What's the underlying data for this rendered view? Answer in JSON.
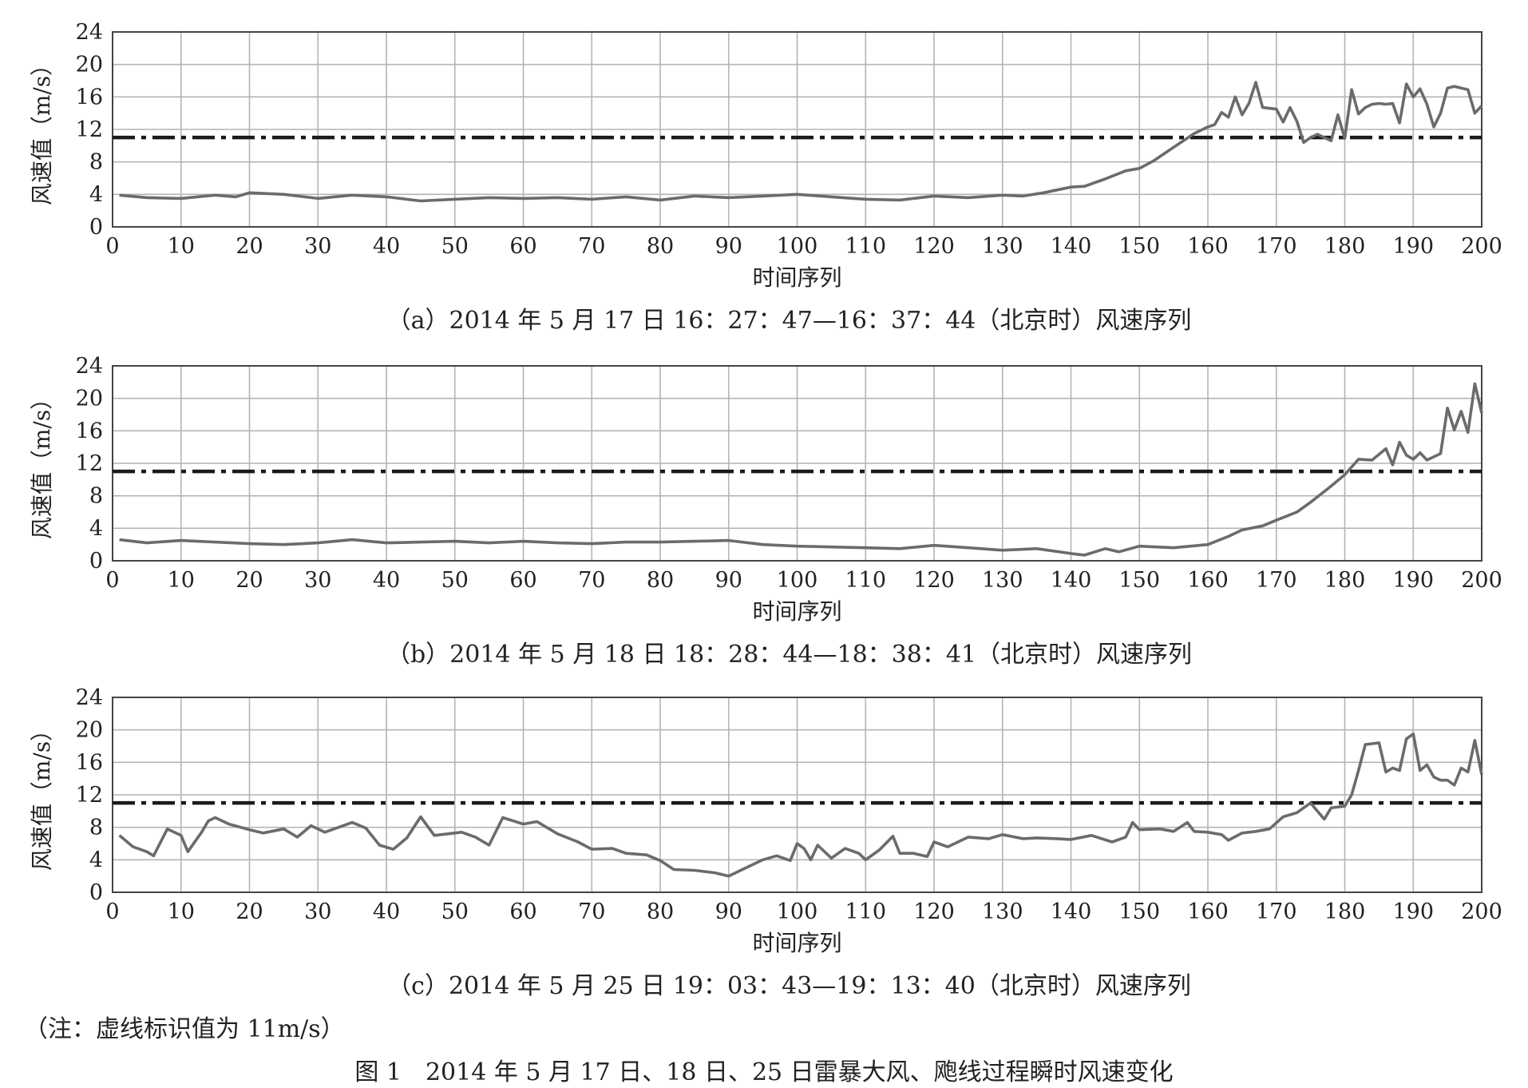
{
  "figure_caption": "图 1　2014 年 5 月 17 日、18 日、25 日雷暴大风、飑线过程瞬时风速变化",
  "note": "（注：虚线标识值为 11m/s）",
  "colors": {
    "series": "#6b6b6b",
    "threshold": "#1a1a1a",
    "grid": "#b4b4b4"
  },
  "chart_data": [
    {
      "type": "line",
      "caption": "（a）2014 年 5 月 17 日 16：27：47—16：37：44（北京时）风速序列",
      "xlabel": "时间序列",
      "ylabel": "风速值（m/s）",
      "xlim": [
        0,
        200
      ],
      "ylim": [
        0,
        24
      ],
      "xticks": [
        "0",
        "10",
        "20",
        "30",
        "40",
        "50",
        "60",
        "70",
        "80",
        "90",
        "100",
        "110",
        "120",
        "130",
        "140",
        "150",
        "160",
        "170",
        "180",
        "190",
        "200"
      ],
      "yticks": [
        "0",
        "4",
        "8",
        "12",
        "16",
        "20",
        "24"
      ],
      "grid": true,
      "threshold": 11,
      "series": [
        {
          "x": [
            1,
            5,
            10,
            15,
            18,
            20,
            25,
            30,
            35,
            40,
            45,
            50,
            55,
            60,
            65,
            70,
            75,
            80,
            85,
            90,
            95,
            100,
            105,
            110,
            115,
            120,
            125,
            130,
            133,
            136,
            140,
            142,
            145,
            148,
            150,
            152,
            155,
            158,
            160,
            161,
            162,
            163,
            164,
            165,
            166,
            167,
            168,
            170,
            171,
            172,
            173,
            174,
            175,
            176,
            178,
            179,
            180,
            181,
            182,
            183,
            184,
            185,
            186,
            187,
            188,
            189,
            190,
            191,
            192,
            193,
            194,
            195,
            196,
            197,
            198,
            199,
            200
          ],
          "y": [
            3.9,
            3.6,
            3.5,
            3.9,
            3.7,
            4.2,
            4.0,
            3.5,
            3.9,
            3.7,
            3.2,
            3.4,
            3.6,
            3.5,
            3.6,
            3.4,
            3.7,
            3.3,
            3.8,
            3.6,
            3.8,
            4.0,
            3.7,
            3.4,
            3.3,
            3.8,
            3.6,
            3.9,
            3.8,
            4.2,
            4.9,
            5.0,
            5.9,
            6.9,
            7.2,
            8.1,
            9.8,
            11.5,
            12.3,
            12.6,
            14.1,
            13.5,
            16.0,
            13.8,
            15.2,
            17.8,
            14.7,
            14.5,
            12.9,
            14.7,
            13.0,
            10.4,
            11.0,
            11.4,
            10.6,
            13.8,
            10.9,
            16.9,
            13.9,
            14.7,
            15.1,
            15.2,
            15.1,
            15.2,
            12.8,
            17.6,
            16.0,
            17.0,
            15.1,
            12.3,
            14.0,
            17.1,
            17.3,
            17.1,
            16.9,
            14.0,
            14.9
          ]
        }
      ]
    },
    {
      "type": "line",
      "caption": "（b）2014 年 5 月 18 日 18：28：44—18：38：41（北京时）风速序列",
      "xlabel": "时间序列",
      "ylabel": "风速值（m/s）",
      "xlim": [
        0,
        200
      ],
      "ylim": [
        0,
        24
      ],
      "xticks": [
        "0",
        "10",
        "20",
        "30",
        "40",
        "50",
        "60",
        "70",
        "80",
        "90",
        "100",
        "110",
        "120",
        "130",
        "140",
        "150",
        "160",
        "170",
        "180",
        "190",
        "200"
      ],
      "yticks": [
        "0",
        "4",
        "8",
        "12",
        "16",
        "20",
        "24"
      ],
      "grid": true,
      "threshold": 11,
      "series": [
        {
          "x": [
            1,
            5,
            10,
            15,
            20,
            25,
            30,
            35,
            40,
            45,
            50,
            55,
            60,
            65,
            70,
            75,
            80,
            85,
            90,
            95,
            100,
            105,
            110,
            115,
            120,
            125,
            130,
            135,
            140,
            142,
            145,
            147,
            150,
            155,
            160,
            163,
            165,
            168,
            170,
            173,
            175,
            178,
            180,
            182,
            184,
            186,
            187,
            188,
            189,
            190,
            191,
            192,
            193,
            194,
            195,
            196,
            197,
            198,
            199,
            200
          ],
          "y": [
            2.6,
            2.2,
            2.5,
            2.3,
            2.1,
            2.0,
            2.2,
            2.6,
            2.2,
            2.3,
            2.4,
            2.2,
            2.4,
            2.2,
            2.1,
            2.3,
            2.3,
            2.4,
            2.5,
            2.0,
            1.8,
            1.7,
            1.6,
            1.5,
            1.9,
            1.6,
            1.3,
            1.5,
            0.9,
            0.7,
            1.5,
            1.1,
            1.8,
            1.6,
            2.0,
            3.0,
            3.8,
            4.3,
            5.0,
            6.0,
            7.2,
            9.2,
            10.6,
            12.5,
            12.4,
            13.8,
            11.8,
            14.6,
            13.0,
            12.5,
            13.3,
            12.4,
            12.8,
            13.2,
            18.8,
            16.1,
            18.4,
            15.8,
            21.8,
            18.2
          ]
        }
      ]
    },
    {
      "type": "line",
      "caption": "（c）2014 年 5 月 25 日 19：03：43—19：13：40（北京时）风速序列",
      "xlabel": "时间序列",
      "ylabel": "风速值（m/s）",
      "xlim": [
        0,
        200
      ],
      "ylim": [
        0,
        24
      ],
      "xticks": [
        "0",
        "10",
        "20",
        "30",
        "40",
        "50",
        "60",
        "70",
        "80",
        "90",
        "100",
        "110",
        "120",
        "130",
        "140",
        "150",
        "160",
        "170",
        "180",
        "190",
        "200"
      ],
      "yticks": [
        "0",
        "4",
        "8",
        "12",
        "16",
        "20",
        "24"
      ],
      "grid": true,
      "threshold": 11,
      "series": [
        {
          "x": [
            1,
            3,
            5,
            6,
            8,
            10,
            11,
            13,
            14,
            15,
            17,
            20,
            22,
            25,
            27,
            29,
            31,
            33,
            35,
            37,
            39,
            41,
            43,
            45,
            47,
            49,
            51,
            53,
            55,
            57,
            60,
            62,
            65,
            68,
            70,
            73,
            75,
            78,
            80,
            82,
            85,
            88,
            90,
            92,
            95,
            97,
            99,
            100,
            101,
            102,
            103,
            105,
            107,
            109,
            110,
            112,
            114,
            115,
            117,
            119,
            120,
            122,
            125,
            128,
            130,
            133,
            135,
            138,
            140,
            143,
            146,
            148,
            149,
            150,
            153,
            155,
            157,
            158,
            160,
            162,
            163,
            165,
            167,
            169,
            171,
            173,
            175,
            177,
            178,
            180,
            181,
            182,
            183,
            184,
            185,
            186,
            187,
            188,
            189,
            190,
            191,
            192,
            193,
            194,
            195,
            196,
            197,
            198,
            199,
            200
          ],
          "y": [
            7.0,
            5.6,
            5.0,
            4.5,
            7.8,
            7.0,
            5.0,
            7.4,
            8.8,
            9.2,
            8.4,
            7.7,
            7.3,
            7.8,
            6.8,
            8.2,
            7.4,
            8.0,
            8.6,
            7.9,
            5.8,
            5.3,
            6.7,
            9.3,
            7.0,
            7.2,
            7.4,
            6.8,
            5.8,
            9.2,
            8.4,
            8.7,
            7.2,
            6.2,
            5.3,
            5.4,
            4.8,
            4.6,
            3.9,
            2.8,
            2.7,
            2.4,
            2.0,
            2.8,
            4.0,
            4.5,
            3.9,
            6.0,
            5.4,
            4.0,
            5.8,
            4.2,
            5.4,
            4.8,
            4.0,
            5.2,
            6.9,
            4.8,
            4.8,
            4.4,
            6.2,
            5.6,
            6.8,
            6.6,
            7.1,
            6.6,
            6.7,
            6.6,
            6.5,
            7.0,
            6.2,
            6.8,
            8.6,
            7.7,
            7.8,
            7.5,
            8.6,
            7.5,
            7.4,
            7.1,
            6.4,
            7.3,
            7.5,
            7.8,
            9.3,
            9.8,
            11.0,
            9.0,
            10.4,
            10.6,
            12.0,
            15.0,
            18.2,
            18.3,
            18.4,
            14.8,
            15.3,
            15.0,
            18.9,
            19.5,
            15.0,
            15.7,
            14.2,
            13.8,
            13.8,
            13.2,
            15.3,
            14.8,
            18.7,
            14.5
          ]
        }
      ]
    }
  ]
}
